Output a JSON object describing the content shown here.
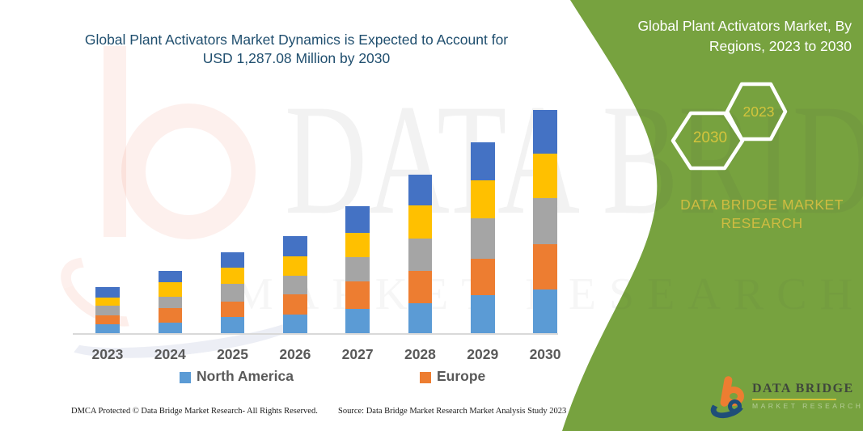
{
  "header": {
    "chart_title": "Global Plant Activators Market Dynamics is Expected to Account for USD 1,287.08 Million by 2030"
  },
  "panel": {
    "title": "Global Plant Activators Market, By Regions, 2023 to 2030",
    "hexagon_left_label": "2030",
    "hexagon_right_label": "2023",
    "brand_text": "DATA BRIDGE MARKET RESEARCH",
    "background_color": "#77a23f",
    "accent_yellow": "#d3c43c"
  },
  "watermark": {
    "line1": "DATA BRIDGE",
    "line2": "MARKET RESEARCH"
  },
  "legend": [
    {
      "label": "North America",
      "color": "#5B9BD5"
    },
    {
      "label": "Europe",
      "color": "#ED7D31"
    }
  ],
  "footer": {
    "left": "DMCA Protected © Data Bridge Market Research-  All Rights Reserved.",
    "right": "Source: Data Bridge Market Research  Market Analysis Study 2023"
  },
  "logo": {
    "brand": "DATA BRIDGE",
    "sub": "MARKET RESEARCH"
  },
  "chart_data": {
    "type": "bar",
    "stacked": true,
    "values_estimated_from_pixels": true,
    "unit": "USD Million",
    "title": "Global Plant Activators Market Dynamics is Expected to Account for USD 1,287.08 Million by 2030",
    "xlabel": "",
    "ylabel": "",
    "y_axis_visible": false,
    "grid": false,
    "legend_position": "bottom",
    "ylim": [
      0,
      1350
    ],
    "categories": [
      "2023",
      "2024",
      "2025",
      "2026",
      "2027",
      "2028",
      "2029",
      "2030"
    ],
    "series": [
      {
        "name": "North America",
        "color": "#5B9BD5",
        "values": [
          54,
          65,
          96,
          113,
          144,
          175,
          223,
          256
        ]
      },
      {
        "name": "Europe",
        "color": "#ED7D31",
        "values": [
          53,
          82,
          90,
          116,
          158,
          186,
          209,
          259
        ]
      },
      {
        "name": "(unlabeled gray)",
        "color": "#A5A5A5",
        "values": [
          54,
          65,
          104,
          106,
          141,
          186,
          233,
          264
        ]
      },
      {
        "name": "(unlabeled yellow)",
        "color": "#FFC000",
        "values": [
          48,
          85,
          90,
          112,
          138,
          194,
          217,
          257
        ]
      },
      {
        "name": "(unlabeled dark blue)",
        "color": "#4472C4",
        "values": [
          63,
          64,
          90,
          115,
          152,
          174,
          220,
          251.08
        ]
      }
    ],
    "totals": [
      272,
      361,
      470,
      562,
      733,
      915,
      1102,
      1287.08
    ]
  }
}
